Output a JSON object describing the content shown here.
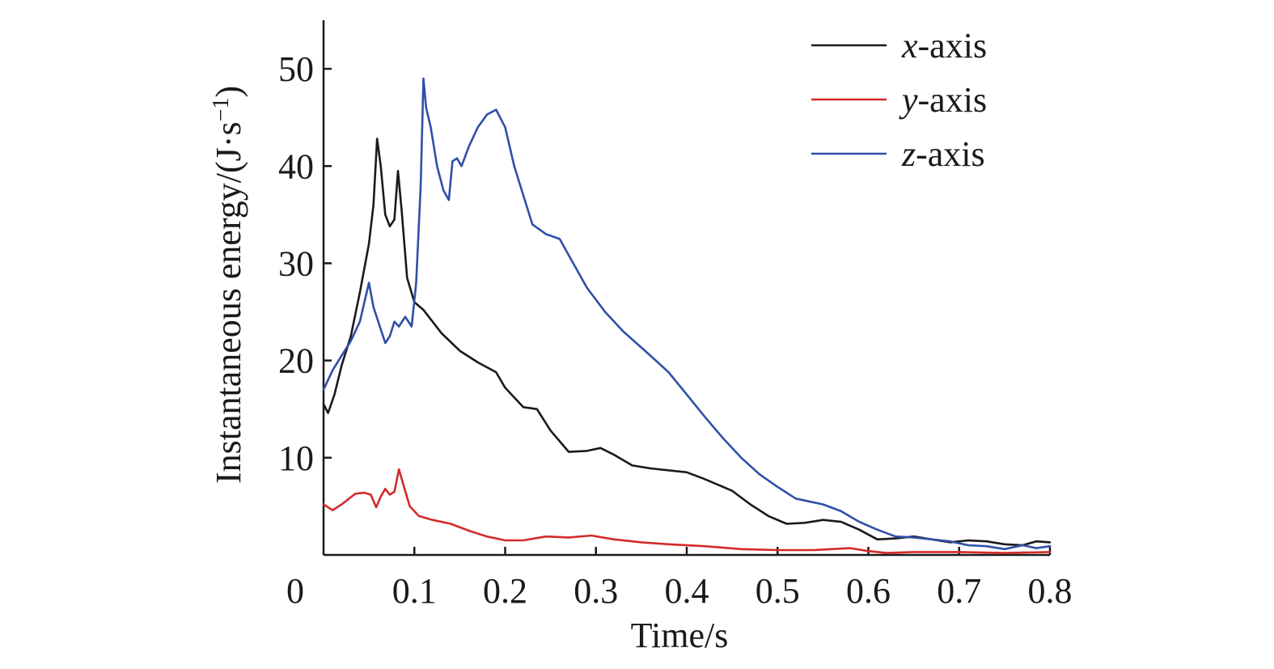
{
  "chart_data": {
    "type": "line",
    "xlabel": "Time/s",
    "ylabel": "Instantaneous energy/(J·s",
    "ylabel_unit_exp": "−1",
    "ylabel_close": ")",
    "origin_label": "0",
    "xlim": [
      0,
      0.8
    ],
    "ylim": [
      0,
      55
    ],
    "xticks": [
      0.1,
      0.2,
      0.3,
      0.4,
      0.5,
      0.6,
      0.7,
      0.8
    ],
    "xtick_labels": [
      "0.1",
      "0.2",
      "0.3",
      "0.4",
      "0.5",
      "0.6",
      "0.7",
      "0.8"
    ],
    "yticks": [
      10,
      20,
      30,
      40,
      50
    ],
    "ytick_labels": [
      "10",
      "20",
      "30",
      "40",
      "50"
    ],
    "grid": false,
    "legend_position": "top-right",
    "series": [
      {
        "name": "x-axis",
        "name_italic": "x",
        "name_rest": "-axis",
        "color": "#1a1a1a",
        "points": [
          [
            0.0,
            15.5
          ],
          [
            0.005,
            14.6
          ],
          [
            0.012,
            16.5
          ],
          [
            0.02,
            19.5
          ],
          [
            0.03,
            22.5
          ],
          [
            0.04,
            27.0
          ],
          [
            0.05,
            32.0
          ],
          [
            0.055,
            36.0
          ],
          [
            0.059,
            42.8
          ],
          [
            0.063,
            40.0
          ],
          [
            0.068,
            35.0
          ],
          [
            0.073,
            33.8
          ],
          [
            0.078,
            34.5
          ],
          [
            0.082,
            39.5
          ],
          [
            0.086,
            35.5
          ],
          [
            0.092,
            28.5
          ],
          [
            0.1,
            26.0
          ],
          [
            0.11,
            25.2
          ],
          [
            0.13,
            22.8
          ],
          [
            0.15,
            21.0
          ],
          [
            0.17,
            19.8
          ],
          [
            0.19,
            18.8
          ],
          [
            0.2,
            17.2
          ],
          [
            0.22,
            15.2
          ],
          [
            0.235,
            15.0
          ],
          [
            0.25,
            12.8
          ],
          [
            0.27,
            10.6
          ],
          [
            0.29,
            10.7
          ],
          [
            0.305,
            11.0
          ],
          [
            0.32,
            10.3
          ],
          [
            0.34,
            9.2
          ],
          [
            0.36,
            8.9
          ],
          [
            0.4,
            8.5
          ],
          [
            0.42,
            7.8
          ],
          [
            0.45,
            6.6
          ],
          [
            0.47,
            5.2
          ],
          [
            0.49,
            4.0
          ],
          [
            0.51,
            3.2
          ],
          [
            0.53,
            3.3
          ],
          [
            0.55,
            3.6
          ],
          [
            0.57,
            3.4
          ],
          [
            0.59,
            2.6
          ],
          [
            0.61,
            1.6
          ],
          [
            0.63,
            1.7
          ],
          [
            0.65,
            1.9
          ],
          [
            0.67,
            1.6
          ],
          [
            0.69,
            1.3
          ],
          [
            0.71,
            1.5
          ],
          [
            0.73,
            1.4
          ],
          [
            0.75,
            1.1
          ],
          [
            0.77,
            1.0
          ],
          [
            0.785,
            1.4
          ],
          [
            0.8,
            1.3
          ]
        ]
      },
      {
        "name": "y-axis",
        "name_italic": "y",
        "name_rest": "-axis",
        "color": "#d42a2a",
        "points": [
          [
            0.0,
            5.2
          ],
          [
            0.01,
            4.6
          ],
          [
            0.02,
            5.2
          ],
          [
            0.035,
            6.3
          ],
          [
            0.045,
            6.4
          ],
          [
            0.052,
            6.2
          ],
          [
            0.058,
            4.9
          ],
          [
            0.063,
            6.0
          ],
          [
            0.068,
            6.8
          ],
          [
            0.073,
            6.2
          ],
          [
            0.078,
            6.5
          ],
          [
            0.083,
            8.8
          ],
          [
            0.088,
            7.2
          ],
          [
            0.095,
            5.0
          ],
          [
            0.105,
            4.0
          ],
          [
            0.12,
            3.6
          ],
          [
            0.14,
            3.2
          ],
          [
            0.16,
            2.5
          ],
          [
            0.18,
            1.9
          ],
          [
            0.2,
            1.5
          ],
          [
            0.22,
            1.5
          ],
          [
            0.245,
            1.9
          ],
          [
            0.27,
            1.8
          ],
          [
            0.295,
            2.0
          ],
          [
            0.32,
            1.6
          ],
          [
            0.35,
            1.3
          ],
          [
            0.38,
            1.1
          ],
          [
            0.42,
            0.9
          ],
          [
            0.46,
            0.6
          ],
          [
            0.5,
            0.5
          ],
          [
            0.54,
            0.5
          ],
          [
            0.58,
            0.7
          ],
          [
            0.6,
            0.4
          ],
          [
            0.62,
            0.2
          ],
          [
            0.65,
            0.3
          ],
          [
            0.7,
            0.3
          ],
          [
            0.75,
            0.2
          ],
          [
            0.8,
            0.3
          ]
        ]
      },
      {
        "name": "z-axis",
        "name_italic": "z",
        "name_rest": "-axis",
        "color": "#2f4fa8",
        "points": [
          [
            0.0,
            17.0
          ],
          [
            0.01,
            19.0
          ],
          [
            0.02,
            20.5
          ],
          [
            0.03,
            22.0
          ],
          [
            0.04,
            24.0
          ],
          [
            0.05,
            28.0
          ],
          [
            0.055,
            25.5
          ],
          [
            0.062,
            23.5
          ],
          [
            0.068,
            21.8
          ],
          [
            0.073,
            22.5
          ],
          [
            0.078,
            24.0
          ],
          [
            0.083,
            23.5
          ],
          [
            0.09,
            24.5
          ],
          [
            0.097,
            23.5
          ],
          [
            0.102,
            28.0
          ],
          [
            0.107,
            38.0
          ],
          [
            0.11,
            49.0
          ],
          [
            0.113,
            46.0
          ],
          [
            0.118,
            44.0
          ],
          [
            0.125,
            40.0
          ],
          [
            0.132,
            37.5
          ],
          [
            0.138,
            36.5
          ],
          [
            0.142,
            40.5
          ],
          [
            0.147,
            40.8
          ],
          [
            0.152,
            40.0
          ],
          [
            0.16,
            42.0
          ],
          [
            0.17,
            44.0
          ],
          [
            0.18,
            45.3
          ],
          [
            0.19,
            45.8
          ],
          [
            0.2,
            44.0
          ],
          [
            0.21,
            40.0
          ],
          [
            0.22,
            37.0
          ],
          [
            0.23,
            34.0
          ],
          [
            0.245,
            33.0
          ],
          [
            0.26,
            32.5
          ],
          [
            0.275,
            30.0
          ],
          [
            0.29,
            27.5
          ],
          [
            0.31,
            25.0
          ],
          [
            0.33,
            23.0
          ],
          [
            0.36,
            20.5
          ],
          [
            0.38,
            18.8
          ],
          [
            0.4,
            16.5
          ],
          [
            0.42,
            14.2
          ],
          [
            0.44,
            12.0
          ],
          [
            0.46,
            10.0
          ],
          [
            0.48,
            8.3
          ],
          [
            0.5,
            7.0
          ],
          [
            0.52,
            5.8
          ],
          [
            0.55,
            5.2
          ],
          [
            0.57,
            4.5
          ],
          [
            0.59,
            3.4
          ],
          [
            0.61,
            2.6
          ],
          [
            0.63,
            1.9
          ],
          [
            0.65,
            1.8
          ],
          [
            0.67,
            1.6
          ],
          [
            0.69,
            1.4
          ],
          [
            0.71,
            1.0
          ],
          [
            0.73,
            0.9
          ],
          [
            0.75,
            0.6
          ],
          [
            0.77,
            1.0
          ],
          [
            0.785,
            0.7
          ],
          [
            0.8,
            0.9
          ]
        ]
      }
    ]
  }
}
